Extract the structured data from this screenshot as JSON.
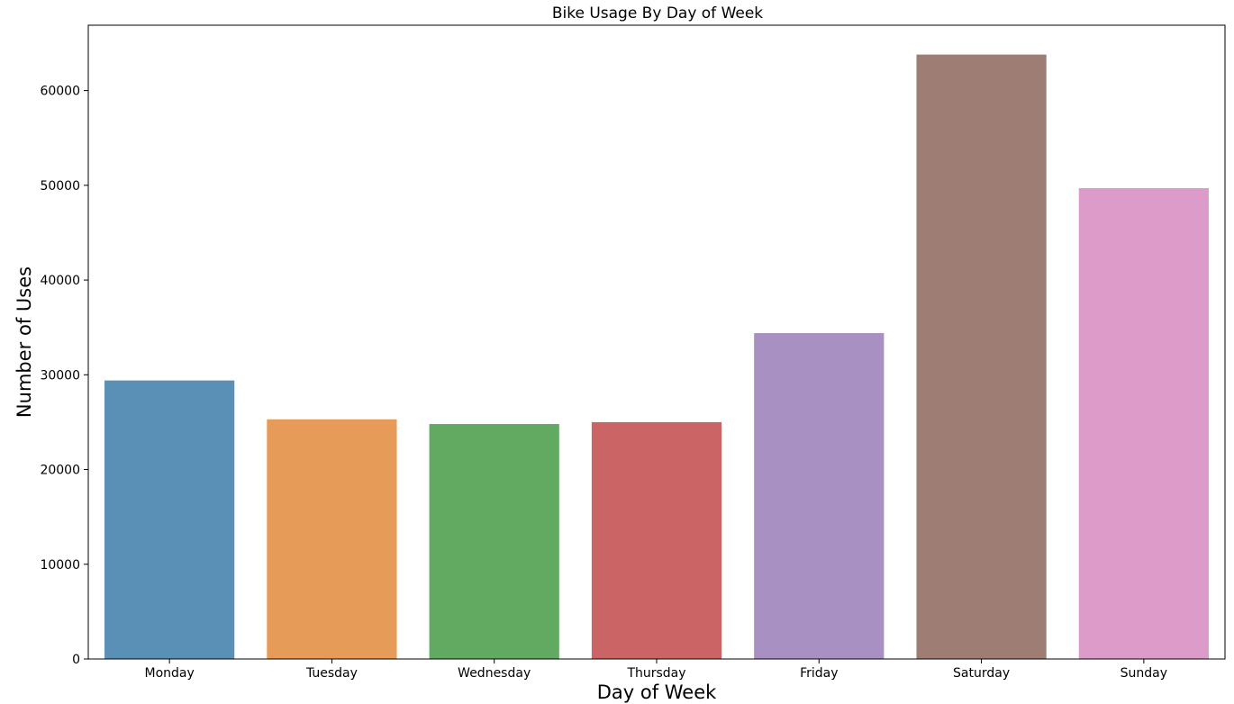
{
  "chart_data": {
    "type": "bar",
    "title": "Bike Usage By Day of Week",
    "xlabel": "Day of Week",
    "ylabel": "Number of Uses",
    "categories": [
      "Monday",
      "Tuesday",
      "Wednesday",
      "Thursday",
      "Friday",
      "Saturday",
      "Sunday"
    ],
    "values": [
      29400,
      25300,
      24800,
      25000,
      34400,
      63800,
      49700
    ],
    "colors": [
      "#5b90b6",
      "#e69b58",
      "#62aa62",
      "#cb6565",
      "#a990c2",
      "#9e7d74",
      "#dd9bca"
    ],
    "ylim": [
      0,
      66900
    ],
    "yticks": [
      0,
      10000,
      20000,
      30000,
      40000,
      50000,
      60000
    ],
    "ytick_labels": [
      "0",
      "10000",
      "20000",
      "30000",
      "40000",
      "50000",
      "60000"
    ],
    "grid": false,
    "legend": false
  }
}
